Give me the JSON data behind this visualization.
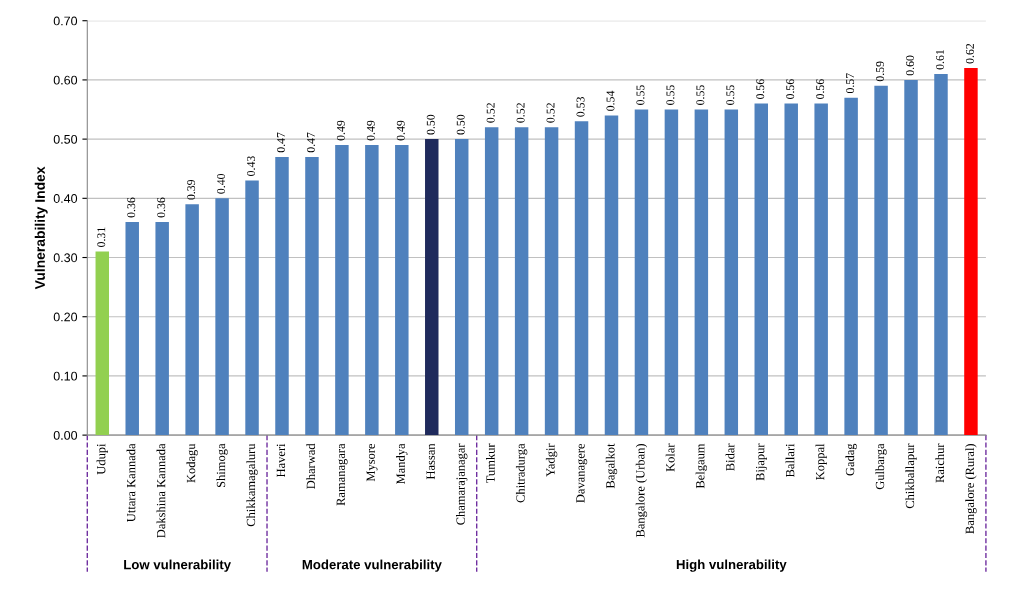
{
  "chart_data": {
    "type": "bar",
    "ylabel": "Vulnerability Index",
    "categories": [
      "Udupi",
      "Uttara Kannada",
      "Dakshina Kannada",
      "Kodagu",
      "Shimoga",
      "Chikkamagaluru",
      "Haveri",
      "Dharwad",
      "Ramanagara",
      "Mysore",
      "Mandya",
      "Hassan",
      "Chamarajanagar",
      "Tumkur",
      "Chitradurga",
      "Yadgir",
      "Davanagere",
      "Bagalkot",
      "Bangalore (Urban)",
      "Kolar",
      "Belgaum",
      "Bidar",
      "Bijapur",
      "Ballari",
      "Koppal",
      "Gadag",
      "Gulbarga",
      "Chikballapur",
      "Raichur",
      "Bangalore (Rural)"
    ],
    "values": [
      0.31,
      0.36,
      0.36,
      0.39,
      0.4,
      0.43,
      0.47,
      0.47,
      0.49,
      0.49,
      0.49,
      0.5,
      0.5,
      0.52,
      0.52,
      0.52,
      0.53,
      0.54,
      0.55,
      0.55,
      0.55,
      0.55,
      0.56,
      0.56,
      0.56,
      0.57,
      0.59,
      0.6,
      0.61,
      0.62
    ],
    "value_labels": [
      "0.31",
      "0.36",
      "0.36",
      "0.39",
      "0.40",
      "0.43",
      "0.47",
      "0.47",
      "0.49",
      "0.49",
      "0.49",
      "0.50",
      "0.50",
      "0.52",
      "0.52",
      "0.52",
      "0.53",
      "0.54",
      "0.55",
      "0.55",
      "0.55",
      "0.55",
      "0.56",
      "0.56",
      "0.56",
      "0.57",
      "0.59",
      "0.60",
      "0.61",
      "0.62"
    ],
    "colors": [
      "#92d050",
      "#4f81bd",
      "#4f81bd",
      "#4f81bd",
      "#4f81bd",
      "#4f81bd",
      "#4f81bd",
      "#4f81bd",
      "#4f81bd",
      "#4f81bd",
      "#4f81bd",
      "#1f2a5c",
      "#4f81bd",
      "#4f81bd",
      "#4f81bd",
      "#4f81bd",
      "#4f81bd",
      "#4f81bd",
      "#4f81bd",
      "#4f81bd",
      "#4f81bd",
      "#4f81bd",
      "#4f81bd",
      "#4f81bd",
      "#4f81bd",
      "#4f81bd",
      "#4f81bd",
      "#4f81bd",
      "#4f81bd",
      "#ff0000"
    ],
    "ylim": [
      0,
      0.7
    ],
    "yticks": [
      {
        "value": 0,
        "label": "0.00"
      },
      {
        "value": 0.1,
        "label": "0.10"
      },
      {
        "value": 0.2,
        "label": "0.20"
      },
      {
        "value": 0.3,
        "label": "0.30"
      },
      {
        "value": 0.4,
        "label": "0.40"
      },
      {
        "value": 0.5,
        "label": "0.50"
      },
      {
        "value": 0.6,
        "label": "0.60"
      },
      {
        "value": 0.7,
        "label": "0.70"
      }
    ],
    "grid": "y",
    "annotations": [
      "Low vulnerability",
      "Moderate vulnerability",
      "High vulnerability"
    ]
  }
}
